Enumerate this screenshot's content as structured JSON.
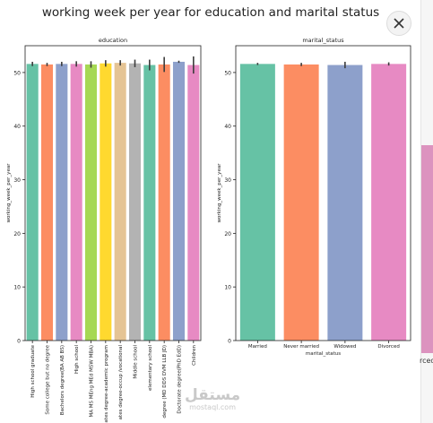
{
  "title": "working week per year for education and marital status",
  "close_icon": "close-icon",
  "side_fragment_text": "rced",
  "watermark": {
    "main": "مستقل",
    "sub": "mostaql.com"
  },
  "chart_data": [
    {
      "type": "bar",
      "title": "education",
      "xlabel": "",
      "ylabel": "working_week_per_year",
      "ylim": [
        0,
        55
      ],
      "yticks": [
        0,
        10,
        20,
        30,
        40,
        50
      ],
      "grid": false,
      "categories": [
        "High school graduate",
        "Some college but no degree",
        "Bachelors degree(BA AB BS)",
        "High school",
        "MA MS MEng MEd MSW MBA)",
        "ates degree-academic program",
        "ates degree-occup /vocational",
        "Middle school",
        "elementary school",
        "degree (MD DDS DVM LLB JD)",
        "Doctorate degree(PhD EdD)",
        "Children"
      ],
      "values": [
        51.6,
        51.5,
        51.6,
        51.6,
        51.5,
        51.7,
        51.8,
        51.7,
        51.4,
        51.5,
        52.0,
        51.4
      ],
      "errors": [
        0.4,
        0.3,
        0.4,
        0.5,
        0.6,
        0.6,
        0.5,
        0.7,
        1.0,
        1.4,
        0.2,
        1.6
      ],
      "colors": [
        "#66c2a5",
        "#fc8d62",
        "#8da0cb",
        "#e78ac3",
        "#a6d854",
        "#ffd92f",
        "#e5c494",
        "#b3b3b3",
        "#66c2a5",
        "#fc8d62",
        "#8da0cb",
        "#e78ac3"
      ]
    },
    {
      "type": "bar",
      "title": "marital_status",
      "xlabel": "marital_status",
      "ylabel": "working_week_per_year",
      "ylim": [
        0,
        55
      ],
      "yticks": [
        0,
        10,
        20,
        30,
        40,
        50
      ],
      "grid": false,
      "categories": [
        "Married",
        "Never married",
        "Widowed",
        "Divorced"
      ],
      "values": [
        51.6,
        51.5,
        51.4,
        51.6
      ],
      "errors": [
        0.2,
        0.3,
        0.6,
        0.3
      ],
      "colors": [
        "#66c2a5",
        "#fc8d62",
        "#8da0cb",
        "#e78ac3"
      ]
    }
  ]
}
